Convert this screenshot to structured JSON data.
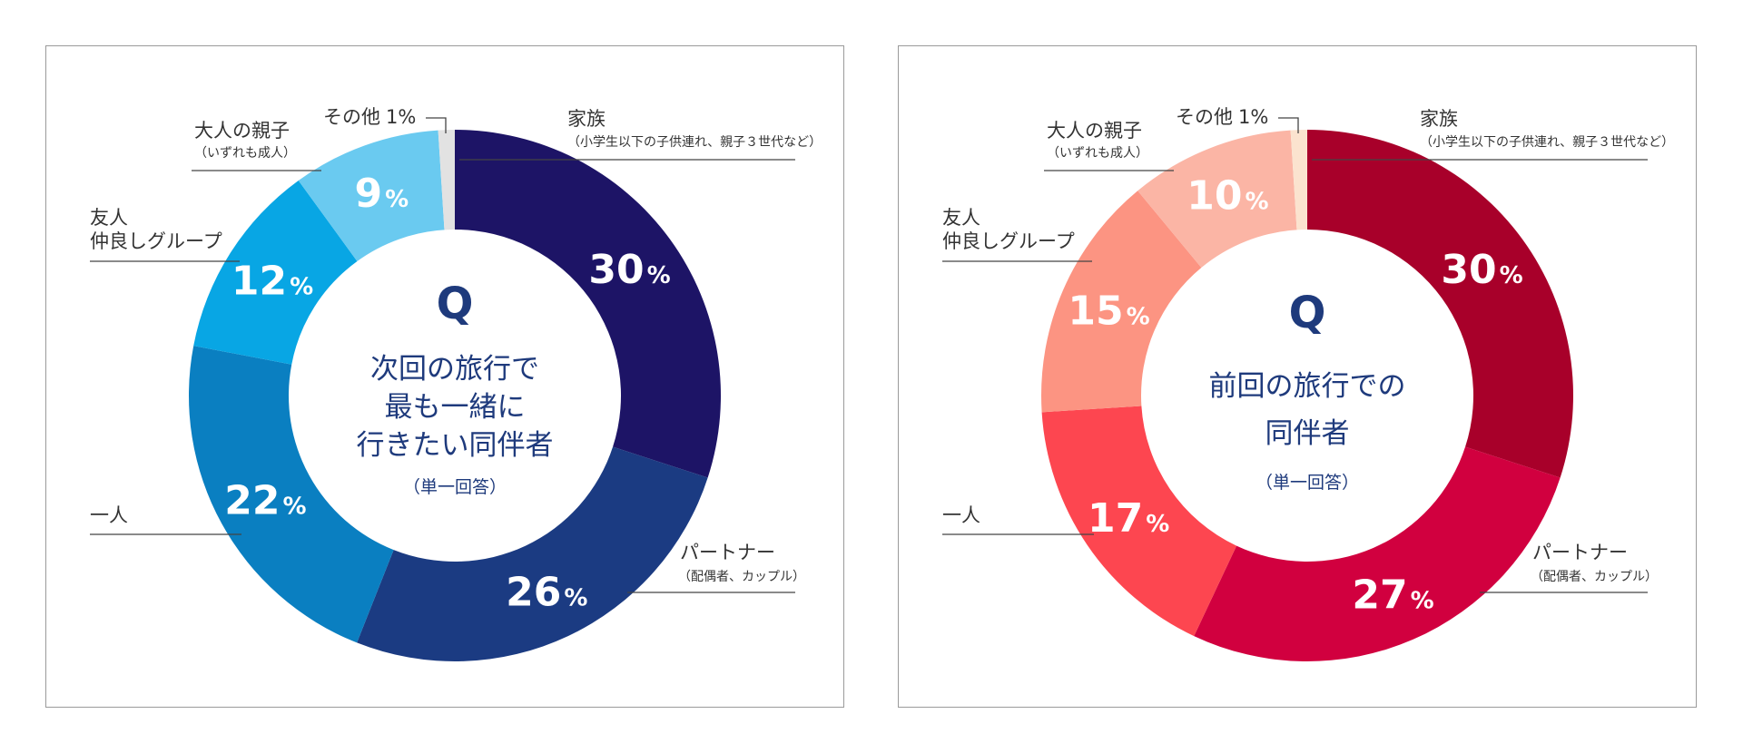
{
  "chart_data": [
    {
      "type": "pie",
      "variant": "donut",
      "center": {
        "mark": "Q",
        "lines": [
          "次回の旅行で",
          "最も一緒に",
          "行きたい同伴者"
        ],
        "note": "（単一回答）"
      },
      "slices": [
        {
          "name": "家族",
          "sub": "（小学生以下の子供連れ、親子３世代など）",
          "value": 30,
          "color": "#1d1466"
        },
        {
          "name": "パートナー",
          "sub": "（配偶者、カップル）",
          "value": 26,
          "color": "#1b3b82"
        },
        {
          "name": "一人",
          "sub": "",
          "value": 22,
          "color": "#0a7fc1"
        },
        {
          "name": "友人",
          "name2": "仲良しグループ",
          "sub": "",
          "value": 12,
          "color": "#08a6e4"
        },
        {
          "name": "大人の親子",
          "sub": "（いずれも成人）",
          "value": 9,
          "color": "#6acaf0"
        },
        {
          "name": "その他",
          "sub": "",
          "value": 1,
          "color": "#e2e2e2"
        }
      ]
    },
    {
      "type": "pie",
      "variant": "donut",
      "center": {
        "mark": "Q",
        "lines": [
          "前回の旅行での",
          "同伴者"
        ],
        "note": "（単一回答）"
      },
      "slices": [
        {
          "name": "家族",
          "sub": "（小学生以下の子供連れ、親子３世代など）",
          "value": 30,
          "color": "#a8002a"
        },
        {
          "name": "パートナー",
          "sub": "（配偶者、カップル）",
          "value": 27,
          "color": "#d1003f"
        },
        {
          "name": "一人",
          "sub": "",
          "value": 17,
          "color": "#fd4650"
        },
        {
          "name": "友人",
          "name2": "仲良しグループ",
          "sub": "",
          "value": 15,
          "color": "#fc9482"
        },
        {
          "name": "大人の親子",
          "sub": "（いずれも成人）",
          "value": 10,
          "color": "#fbb5a5"
        },
        {
          "name": "その他",
          "sub": "",
          "value": 1,
          "color": "#fbe3cf"
        }
      ]
    }
  ],
  "percent_symbol": "%"
}
